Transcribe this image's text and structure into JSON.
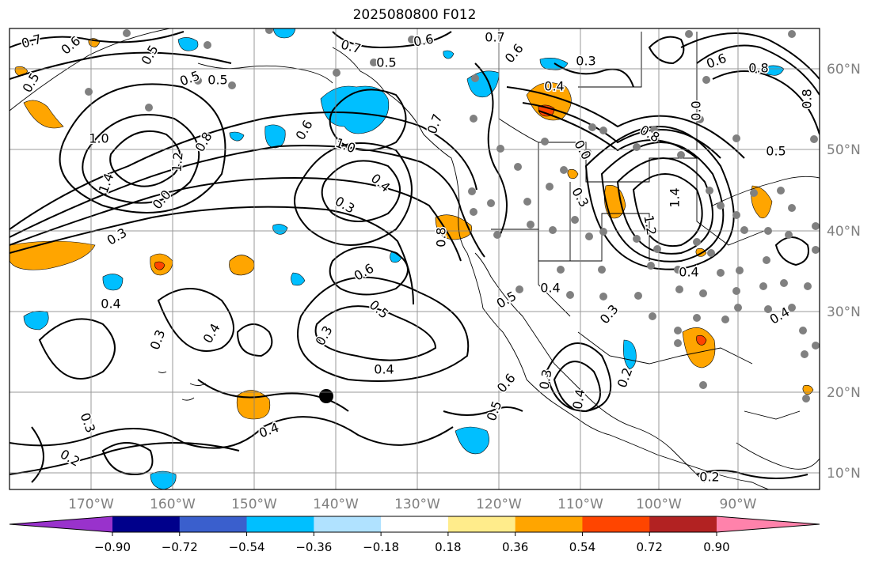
{
  "title": "2025080800 F012",
  "map": {
    "lon_labels": [
      "170°W",
      "160°W",
      "150°W",
      "140°W",
      "130°W",
      "120°W",
      "110°W",
      "100°W",
      "90°W"
    ],
    "lat_labels": [
      "60°N",
      "50°N",
      "40°N",
      "30°N",
      "20°N",
      "10°N"
    ],
    "contour_labels": [
      {
        "text": "0.7"
      },
      {
        "text": "0.6"
      },
      {
        "text": "0.5"
      },
      {
        "text": "0.5"
      },
      {
        "text": "0.5"
      },
      {
        "text": "1.0"
      },
      {
        "text": "1.4"
      },
      {
        "text": "1.2"
      },
      {
        "text": "0.8"
      },
      {
        "text": "0.0"
      },
      {
        "text": "0.3"
      },
      {
        "text": "0.5"
      },
      {
        "text": "0.7"
      },
      {
        "text": "0.5"
      },
      {
        "text": "0.6"
      },
      {
        "text": "1.0"
      },
      {
        "text": "0.4"
      },
      {
        "text": "0.7"
      },
      {
        "text": "0.6"
      },
      {
        "text": "0.3"
      },
      {
        "text": "0.6"
      },
      {
        "text": "0.5"
      },
      {
        "text": "0.8"
      },
      {
        "text": "0.7"
      },
      {
        "text": "0.6"
      },
      {
        "text": "0.3"
      },
      {
        "text": "0.4"
      },
      {
        "text": "0.6"
      },
      {
        "text": "0.8"
      },
      {
        "text": "0.5"
      },
      {
        "text": "0.8"
      },
      {
        "text": "0.0"
      },
      {
        "text": "1.4"
      },
      {
        "text": "0.3"
      },
      {
        "text": "1.2"
      },
      {
        "text": "0.4"
      },
      {
        "text": "0.3"
      },
      {
        "text": "0.4"
      },
      {
        "text": "0.3"
      },
      {
        "text": "0.4"
      },
      {
        "text": "0.3"
      },
      {
        "text": "0.6"
      },
      {
        "text": "0.4"
      },
      {
        "text": "0.5"
      },
      {
        "text": "0.3"
      },
      {
        "text": "0.4"
      },
      {
        "text": "0.2"
      },
      {
        "text": "0.5"
      },
      {
        "text": "0.3"
      },
      {
        "text": "0.2"
      },
      {
        "text": "0.4"
      },
      {
        "text": "0.4"
      },
      {
        "text": "0.2"
      },
      {
        "text": "0.0"
      },
      {
        "text": "0.8"
      },
      {
        "text": "0.4"
      }
    ]
  },
  "colorbar": {
    "ticks": [
      "−0.90",
      "−0.72",
      "−0.54",
      "−0.36",
      "−0.18",
      "0.18",
      "0.36",
      "0.54",
      "0.72",
      "0.90"
    ],
    "colors": [
      "#9932cc",
      "#00008b",
      "#3a5fcd",
      "#00bfff",
      "#b0e2ff",
      "#ffffff",
      "#ffec8b",
      "#ffa500",
      "#ff4500",
      "#b22222",
      "#ff82ab"
    ]
  }
}
